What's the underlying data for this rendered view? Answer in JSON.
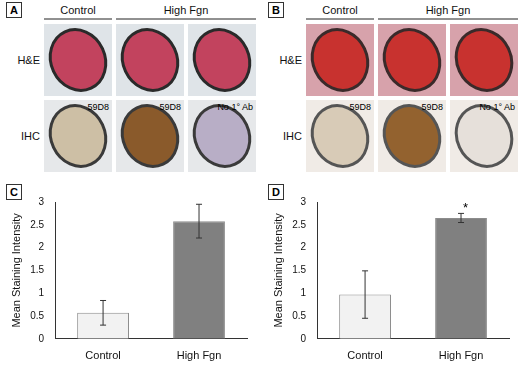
{
  "panels": [
    {
      "label": "A",
      "groups": [
        {
          "text": "Control",
          "span": 1
        },
        {
          "text": "High Fgn",
          "span": 2
        }
      ],
      "rows": [
        {
          "label": "H&E"
        },
        {
          "label": "IHC",
          "image_labels": [
            "59D8",
            "59D8",
            "No 1° Ab"
          ]
        }
      ]
    },
    {
      "label": "B",
      "groups": [
        {
          "text": "Control",
          "span": 1
        },
        {
          "text": "High Fgn",
          "span": 2
        }
      ],
      "rows": [
        {
          "label": "H&E"
        },
        {
          "label": "IHC",
          "image_labels": [
            "59D8",
            "59D8",
            "No 1° Ab"
          ]
        }
      ]
    }
  ],
  "chart_data": [
    {
      "type": "bar",
      "title": "C",
      "y_label": "Mean Staining Intensity",
      "categories": [
        "Control",
        "High Fgn"
      ],
      "values": [
        0.57,
        2.58
      ],
      "errors": [
        0.27,
        0.37
      ],
      "colors": [
        "#f2f2f2",
        "#808080"
      ],
      "ylim": [
        0,
        3
      ],
      "yticks": [
        0,
        0.5,
        1,
        1.5,
        2,
        2.5,
        3
      ],
      "grid": false
    },
    {
      "type": "bar",
      "title": "D",
      "y_label": "Mean Staining Intensity",
      "categories": [
        "Control",
        "High Fgn"
      ],
      "values": [
        0.97,
        2.65
      ],
      "errors": [
        0.52,
        0.1
      ],
      "colors": [
        "#f2f2f2",
        "#808080"
      ],
      "ylim": [
        0,
        3
      ],
      "yticks": [
        0,
        0.5,
        1,
        1.5,
        2,
        2.5,
        3
      ],
      "grid": false,
      "annotations": [
        {
          "text": "*",
          "category": "High Fgn"
        }
      ]
    }
  ]
}
